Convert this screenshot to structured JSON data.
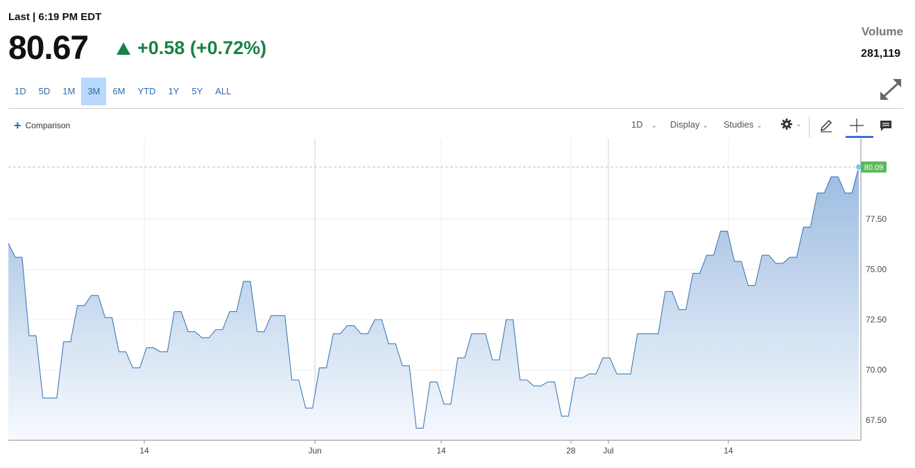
{
  "header": {
    "last_label": "Last | 6:19 PM EDT",
    "price": "80.67",
    "change": "+0.58 (+0.72%)",
    "volume_label": "Volume",
    "volume_value": "281,119"
  },
  "ranges": [
    {
      "label": "1D",
      "active": false
    },
    {
      "label": "5D",
      "active": false
    },
    {
      "label": "1M",
      "active": false
    },
    {
      "label": "3M",
      "active": true
    },
    {
      "label": "6M",
      "active": false
    },
    {
      "label": "YTD",
      "active": false
    },
    {
      "label": "1Y",
      "active": false
    },
    {
      "label": "5Y",
      "active": false
    },
    {
      "label": "ALL",
      "active": false
    }
  ],
  "toolbar": {
    "comparison_label": "Comparison",
    "interval_label": "1D",
    "display_label": "Display",
    "studies_label": "Studies"
  },
  "colors": {
    "line": "#3d7ab8",
    "fill_top": "#9bbbe0",
    "fill_bottom": "#f7fafe",
    "last_badge": "#5cb85c",
    "up": "#18824a",
    "active_range": "#b9d8fb"
  },
  "chart_data": {
    "type": "area",
    "ylim": [
      66.5,
      81.5
    ],
    "yticks": [
      "67.50",
      "70.00",
      "72.50",
      "75.00",
      "77.50"
    ],
    "xlabels": [
      "14",
      "Jun",
      "14",
      "28",
      "Jul",
      "14"
    ],
    "last_value_label": "80.09",
    "last_value": 80.09,
    "grid": true,
    "values": [
      76.3,
      75.6,
      75.6,
      71.7,
      71.7,
      68.6,
      68.6,
      68.6,
      71.4,
      71.4,
      73.2,
      73.2,
      73.7,
      73.7,
      72.6,
      72.6,
      70.9,
      70.9,
      70.1,
      70.1,
      71.1,
      71.1,
      70.9,
      70.9,
      72.9,
      72.9,
      71.9,
      71.9,
      71.6,
      71.6,
      72.0,
      72.0,
      72.9,
      72.9,
      74.4,
      74.4,
      71.9,
      71.9,
      72.7,
      72.7,
      72.7,
      69.5,
      69.5,
      68.1,
      68.1,
      70.1,
      70.1,
      71.8,
      71.8,
      72.2,
      72.2,
      71.8,
      71.8,
      72.5,
      72.5,
      71.3,
      71.3,
      70.2,
      70.2,
      67.1,
      67.1,
      69.4,
      69.4,
      68.3,
      68.3,
      70.6,
      70.6,
      71.8,
      71.8,
      71.8,
      70.5,
      70.5,
      72.5,
      72.5,
      69.5,
      69.5,
      69.2,
      69.2,
      69.4,
      69.4,
      67.7,
      67.7,
      69.6,
      69.6,
      69.8,
      69.8,
      70.6,
      70.6,
      69.8,
      69.8,
      69.8,
      71.8,
      71.8,
      71.8,
      71.8,
      73.9,
      73.9,
      73.0,
      73.0,
      74.8,
      74.8,
      75.7,
      75.7,
      76.9,
      76.9,
      75.4,
      75.4,
      74.2,
      74.2,
      75.7,
      75.7,
      75.3,
      75.3,
      75.6,
      75.6,
      77.1,
      77.1,
      78.8,
      78.8,
      79.6,
      79.6,
      78.8,
      78.8,
      80.09
    ]
  }
}
